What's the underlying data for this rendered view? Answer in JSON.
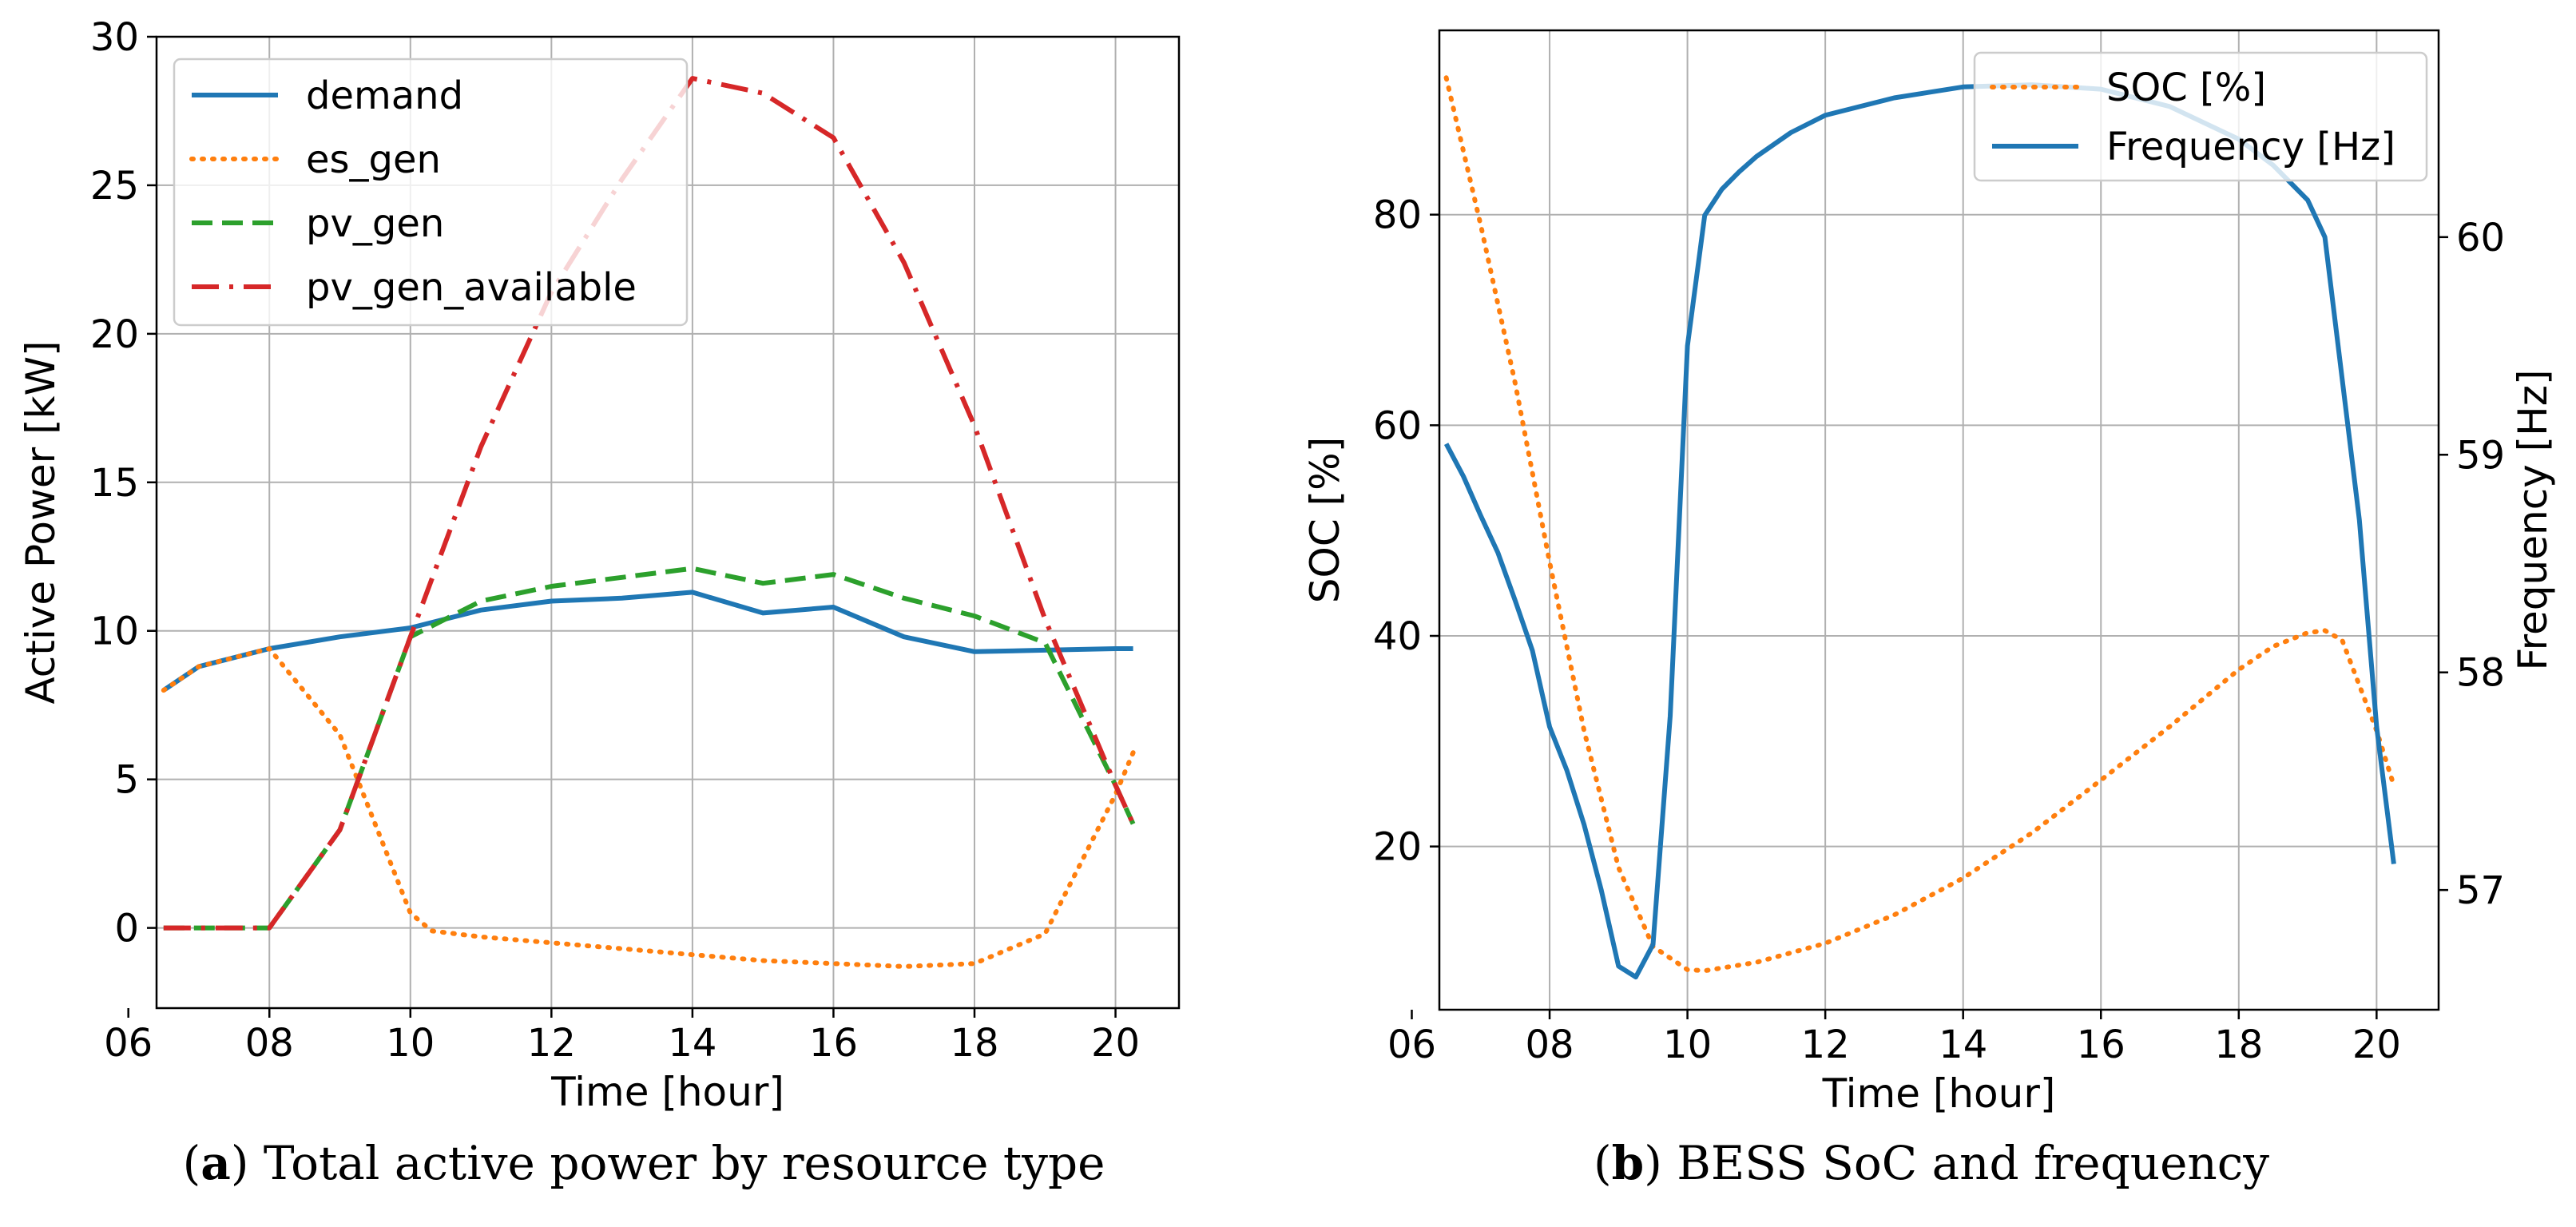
{
  "chart_data": [
    {
      "type": "line",
      "panel": "a",
      "xlabel": "Time [hour]",
      "ylabel": "Active Power [kW]",
      "xlim": [
        6.4,
        20.9
      ],
      "ylim": [
        -2.7,
        30.0
      ],
      "xticks": [
        6,
        8,
        10,
        12,
        14,
        16,
        18,
        20
      ],
      "xtick_labels": [
        "06",
        "08",
        "10",
        "12",
        "14",
        "16",
        "18",
        "20"
      ],
      "yticks": [
        0,
        5,
        10,
        15,
        20,
        25,
        30
      ],
      "ytick_labels": [
        "0",
        "5",
        "10",
        "15",
        "20",
        "25",
        "30"
      ],
      "grid": true,
      "legend_position": "top-left",
      "series": [
        {
          "name": "demand",
          "color": "#1f77b4",
          "style": "solid",
          "x": [
            6.5,
            7,
            8,
            9,
            10,
            11,
            12,
            13,
            14,
            15,
            16,
            17,
            18,
            19,
            20,
            20.25
          ],
          "y": [
            8.0,
            8.8,
            9.4,
            9.8,
            10.1,
            10.7,
            11.0,
            11.1,
            11.3,
            10.6,
            10.8,
            9.8,
            9.3,
            9.35,
            9.4,
            9.4
          ]
        },
        {
          "name": "es_gen",
          "color": "#ff7f0e",
          "style": "dotted",
          "x": [
            6.5,
            7,
            8,
            9,
            10,
            10.3,
            11,
            12,
            13,
            14,
            15,
            16,
            17,
            18,
            19,
            20,
            20.25
          ],
          "y": [
            8.0,
            8.8,
            9.4,
            6.5,
            0.5,
            -0.1,
            -0.3,
            -0.5,
            -0.7,
            -0.9,
            -1.1,
            -1.2,
            -1.3,
            -1.2,
            -0.2,
            4.5,
            5.9
          ]
        },
        {
          "name": "pv_gen",
          "color": "#2ca02c",
          "style": "dashed",
          "x": [
            6.5,
            7,
            8,
            9,
            10,
            11,
            12,
            13,
            14,
            15,
            16,
            17,
            18,
            19,
            20,
            20.25
          ],
          "y": [
            0,
            0,
            0,
            3.3,
            9.8,
            11.0,
            11.5,
            11.8,
            12.1,
            11.6,
            11.9,
            11.1,
            10.5,
            9.6,
            4.8,
            3.5
          ]
        },
        {
          "name": "pv_gen_available",
          "color": "#d62728",
          "style": "dashdot",
          "x": [
            6.5,
            7,
            8,
            9,
            10,
            11,
            12,
            13,
            14,
            15,
            16,
            17,
            18,
            19,
            20,
            20.25
          ],
          "y": [
            0,
            0,
            0,
            3.3,
            9.8,
            16.2,
            21.4,
            25.2,
            28.6,
            28.1,
            26.6,
            22.4,
            16.9,
            10.4,
            4.8,
            3.5
          ]
        }
      ]
    },
    {
      "type": "line",
      "panel": "b",
      "xlabel": "Time [hour]",
      "ylabel": "SOC [%]",
      "ylabel_right": "Frequency [Hz]",
      "xlim": [
        6.4,
        20.9
      ],
      "ylim": [
        4.5,
        97.5
      ],
      "ylim_right": [
        56.45,
        60.95
      ],
      "xticks": [
        6,
        8,
        10,
        12,
        14,
        16,
        18,
        20
      ],
      "xtick_labels": [
        "06",
        "08",
        "10",
        "12",
        "14",
        "16",
        "18",
        "20"
      ],
      "yticks": [
        20,
        40,
        60,
        80
      ],
      "ytick_labels": [
        "20",
        "40",
        "60",
        "80"
      ],
      "yticks_right": [
        57,
        58,
        59,
        60
      ],
      "ytick_labels_right": [
        "57",
        "58",
        "59",
        "60"
      ],
      "grid": true,
      "legend_position": "top-right",
      "series": [
        {
          "name": "SOC [%]",
          "axis": "left",
          "color": "#ff7f0e",
          "style": "dotted",
          "x": [
            6.5,
            7,
            7.5,
            8,
            8.5,
            9,
            9.5,
            10,
            10.25,
            11,
            12,
            13,
            14,
            15,
            16,
            17,
            18,
            18.5,
            19,
            19.25,
            19.5,
            20,
            20.25
          ],
          "y": [
            93,
            79,
            64,
            47,
            31,
            18,
            10.5,
            8.3,
            8.2,
            9.0,
            10.8,
            13.5,
            17.0,
            21.3,
            26.3,
            31.4,
            36.8,
            39.0,
            40.3,
            40.5,
            39.6,
            31.0,
            25.8
          ]
        },
        {
          "name": "Frequency [Hz]",
          "axis": "right",
          "color": "#1f77b4",
          "style": "solid",
          "x": [
            6.5,
            6.75,
            7,
            7.25,
            7.5,
            7.75,
            8,
            8.25,
            8.5,
            8.75,
            9,
            9.25,
            9.5,
            9.75,
            10,
            10.25,
            10.5,
            10.75,
            11,
            11.5,
            12,
            13,
            14,
            15,
            16,
            17,
            18,
            18.5,
            19,
            19.25,
            19.5,
            19.75,
            20,
            20.25
          ],
          "y": [
            59.05,
            58.9,
            58.72,
            58.55,
            58.33,
            58.1,
            57.75,
            57.55,
            57.3,
            57.0,
            56.65,
            56.6,
            56.75,
            57.8,
            59.5,
            60.1,
            60.22,
            60.3,
            60.37,
            60.48,
            60.56,
            60.64,
            60.69,
            60.7,
            60.68,
            60.6,
            60.45,
            60.33,
            60.17,
            60.0,
            59.35,
            58.7,
            57.75,
            57.12
          ]
        }
      ]
    }
  ],
  "captions": {
    "a_label": "a",
    "a_text": "Total active power by resource type",
    "b_label": "b",
    "b_text": "BESS SoC and frequency"
  }
}
